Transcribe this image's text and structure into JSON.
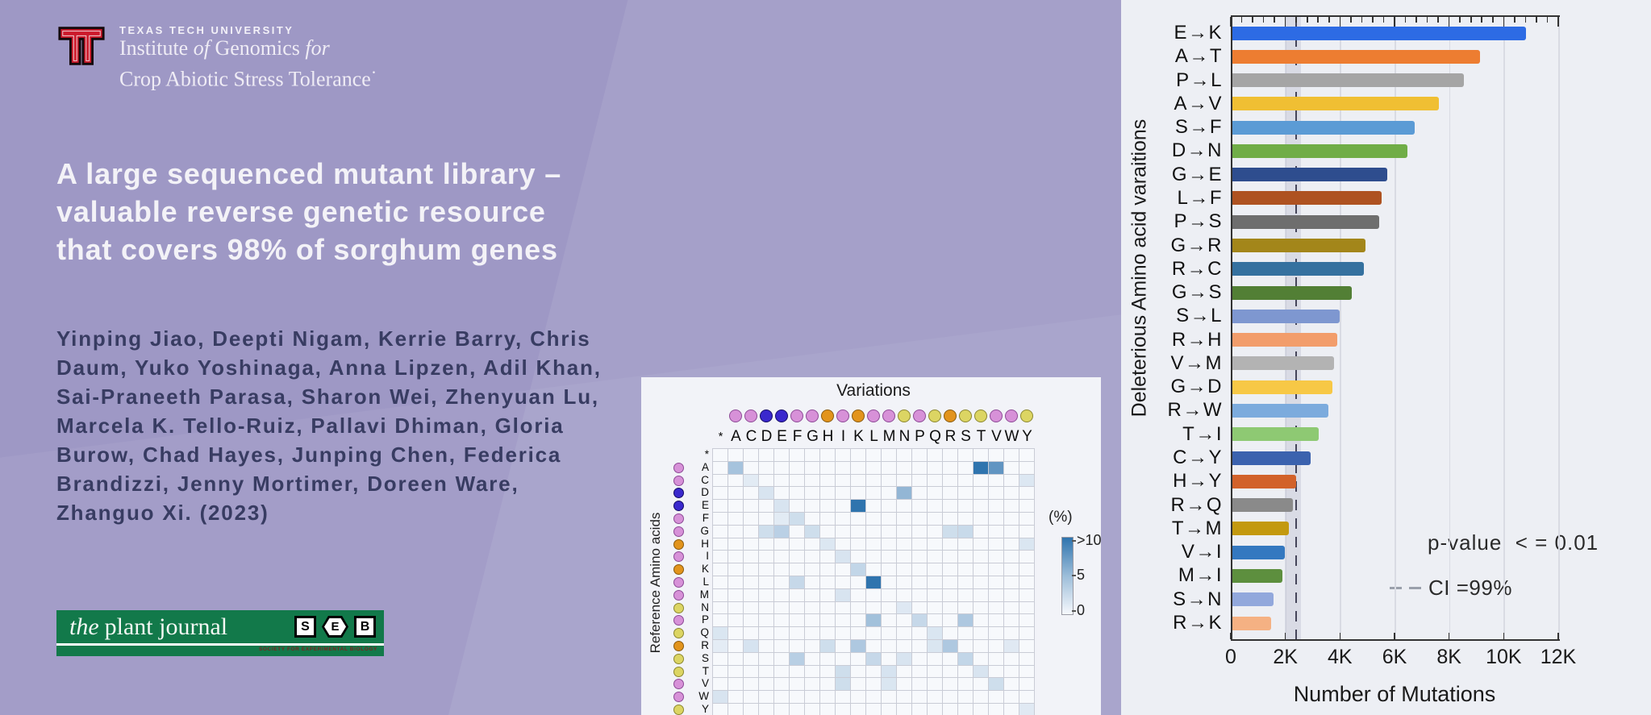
{
  "branding": {
    "university": "TEXAS TECH UNIVERSITY",
    "institute": {
      "w1": "Institute",
      "w2": "of",
      "w3": "Genomics",
      "w4": "for",
      "line2": "Crop Abiotic Stress Tolerance",
      "mark": "·"
    },
    "logo_red": "#cc1a2b"
  },
  "title": {
    "lines": [
      "A large sequenced mutant library –",
      "valuable reverse genetic resource",
      "that covers 98% of sorghum genes"
    ]
  },
  "authors": {
    "lines": [
      "Yinping Jiao, Deepti Nigam, Kerrie Barry, Chris",
      "Daum, Yuko Yoshinaga, Anna Lipzen, Adil Khan,",
      "Sai-Praneeth Parasa, Sharon Wei, Zhenyuan Lu,",
      "Marcela K. Tello-Ruiz, Pallavi Dhiman, Gloria",
      "Burow, Chad Hayes, Junping Chen, Federica",
      "Brandizzi, Jenny Mortimer, Doreen Ware,",
      "Zhanguo Xi. (2023)"
    ]
  },
  "journal": {
    "the": "the",
    "name": "plant journal",
    "seb": [
      "S",
      "E",
      "B"
    ],
    "caption": "SOCIETY FOR EXPERIMENTAL BIOLOGY",
    "green": "#12794a"
  },
  "heatmap_meta": {
    "classes": [
      "none",
      "pink",
      "pink",
      "blue",
      "blue",
      "pink",
      "pink",
      "orange",
      "pink",
      "orange",
      "pink",
      "pink",
      "yellow",
      "pink",
      "yellow",
      "orange",
      "yellow",
      "yellow",
      "pink",
      "pink",
      "yellow"
    ],
    "class_colors": {
      "pink": {
        "fill": "#d791d8",
        "stroke": "#8d4a96"
      },
      "blue": {
        "fill": "#3a28cd",
        "stroke": "#150c66"
      },
      "orange": {
        "fill": "#e2941d",
        "stroke": "#8a5a0e"
      },
      "yellow": {
        "fill": "#dcd563",
        "stroke": "#8c8730"
      }
    },
    "cell_bg": "#f7f9fc",
    "cell_low": "#f6f8fc",
    "cell_high": "#2f74ae",
    "grid_line": "#c9ccd6"
  },
  "chart_data": [
    {
      "type": "heatmap",
      "title": "Variations",
      "xlabel": "Variations",
      "ylabel": "Reference Amino acids",
      "x_categories": [
        "*",
        "A",
        "C",
        "D",
        "E",
        "F",
        "G",
        "H",
        "I",
        "K",
        "L",
        "M",
        "N",
        "P",
        "Q",
        "R",
        "S",
        "T",
        "V",
        "W",
        "Y"
      ],
      "y_categories": [
        "*",
        "A",
        "C",
        "D",
        "E",
        "F",
        "G",
        "H",
        "I",
        "K",
        "L",
        "M",
        "N",
        "P",
        "Q",
        "R",
        "S",
        "T",
        "V",
        "W",
        "Y"
      ],
      "colorbar": {
        "title": "(%)",
        "ticks": [
          ">10",
          "5",
          "0"
        ],
        "range": [
          0,
          10
        ]
      },
      "cells": [
        [
          "A",
          "A",
          4
        ],
        [
          "A",
          "T",
          10.5
        ],
        [
          "A",
          "V",
          7.5
        ],
        [
          "C",
          "C",
          1
        ],
        [
          "C",
          "Y",
          1.3
        ],
        [
          "D",
          "D",
          1.5
        ],
        [
          "D",
          "N",
          5
        ],
        [
          "E",
          "E",
          1.5
        ],
        [
          "E",
          "K",
          12
        ],
        [
          "F",
          "E",
          1
        ],
        [
          "F",
          "F",
          2
        ],
        [
          "G",
          "D",
          2
        ],
        [
          "G",
          "E",
          3
        ],
        [
          "G",
          "G",
          2
        ],
        [
          "G",
          "R",
          2
        ],
        [
          "G",
          "S",
          2.3
        ],
        [
          "H",
          "H",
          1.3
        ],
        [
          "H",
          "Y",
          1.4
        ],
        [
          "I",
          "I",
          1.5
        ],
        [
          "K",
          "K",
          2.6
        ],
        [
          "L",
          "F",
          2.4
        ],
        [
          "L",
          "L",
          11
        ],
        [
          "M",
          "I",
          1.5
        ],
        [
          "N",
          "N",
          1.2
        ],
        [
          "P",
          "L",
          4.2
        ],
        [
          "P",
          "P",
          2.4
        ],
        [
          "P",
          "S",
          3.6
        ],
        [
          "Q",
          "*",
          1.4
        ],
        [
          "Q",
          "Q",
          1.4
        ],
        [
          "R",
          "*",
          0.9
        ],
        [
          "R",
          "C",
          1.6
        ],
        [
          "R",
          "H",
          2
        ],
        [
          "R",
          "K",
          3.6
        ],
        [
          "R",
          "Q",
          1.4
        ],
        [
          "R",
          "R",
          3.6
        ],
        [
          "R",
          "W",
          1.1
        ],
        [
          "S",
          "F",
          3.1
        ],
        [
          "S",
          "L",
          2.4
        ],
        [
          "S",
          "N",
          1.5
        ],
        [
          "S",
          "S",
          2.6
        ],
        [
          "T",
          "I",
          2
        ],
        [
          "T",
          "M",
          1.6
        ],
        [
          "T",
          "T",
          1.5
        ],
        [
          "V",
          "I",
          2
        ],
        [
          "V",
          "M",
          1.4
        ],
        [
          "V",
          "V",
          2
        ],
        [
          "W",
          "*",
          1.5
        ],
        [
          "Y",
          "Y",
          1.1
        ]
      ]
    },
    {
      "type": "bar",
      "orientation": "horizontal",
      "ylabel": "Deleterious Amino acid varaitions",
      "xlabel": "Number of Mutations",
      "xlim": [
        0,
        12000
      ],
      "xtick_labels": [
        "0",
        "2K",
        "4K",
        "6K",
        "8K",
        "10K",
        "12K"
      ],
      "categories": [
        "E→K",
        "A→T",
        "P→L",
        "A→V",
        "S→F",
        "D→N",
        "G→E",
        "L→F",
        "P→S",
        "G→R",
        "R→C",
        "G→S",
        "S→L",
        "R→H",
        "V→M",
        "G→D",
        "R→W",
        "T→I",
        "C→Y",
        "H→Y",
        "R→Q",
        "T→M",
        "V→I",
        "M→I",
        "S→N",
        "R→K"
      ],
      "values": [
        10800,
        9100,
        8500,
        7600,
        6700,
        6450,
        5700,
        5500,
        5400,
        4900,
        4850,
        4400,
        3950,
        3880,
        3750,
        3680,
        3550,
        3200,
        2900,
        2350,
        2250,
        2100,
        1950,
        1850,
        1550,
        1450
      ],
      "colors": [
        "#2d6be4",
        "#ed7d31",
        "#a5a5a5",
        "#f0bf33",
        "#5b9bd5",
        "#70ad47",
        "#2e4d8e",
        "#ae5221",
        "#6e6e6e",
        "#a3861a",
        "#35719f",
        "#527f35",
        "#7e97d0",
        "#f29d6b",
        "#b3b3b3",
        "#f7c846",
        "#7cabdd",
        "#8ec973",
        "#3b62ae",
        "#d2622a",
        "#8a8a8a",
        "#c3990f",
        "#3478c0",
        "#5d8f3e",
        "#92a8dc",
        "#f5b183"
      ],
      "annotations": {
        "p_value_label": "p-value  < = 0.01",
        "ci_label": "CI =99%",
        "ci_line_x": 2360,
        "ci_band": [
          1980,
          2560
        ]
      }
    }
  ]
}
